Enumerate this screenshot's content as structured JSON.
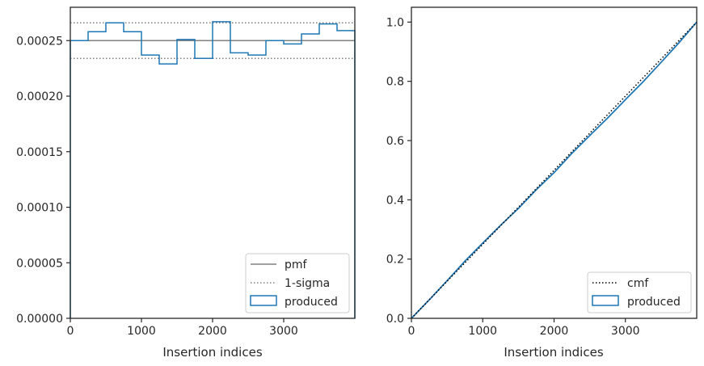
{
  "chart_data": [
    {
      "type": "histogram",
      "xlabel": "Insertion indices",
      "ylabel": "",
      "xlim": [
        0,
        4000
      ],
      "ylim": [
        0,
        0.00028
      ],
      "x_ticks": [
        0,
        1000,
        2000,
        3000
      ],
      "x_tick_labels": [
        "0",
        "1000",
        "2000",
        "3000"
      ],
      "y_ticks": [
        0,
        5e-05,
        0.0001,
        0.00015,
        0.0002,
        0.00025
      ],
      "y_tick_labels": [
        "0.00000",
        "0.00005",
        "0.00010",
        "0.00015",
        "0.00020",
        "0.00025"
      ],
      "bin_edges": [
        0,
        250,
        500,
        750,
        1000,
        1250,
        1500,
        1750,
        2000,
        2250,
        2500,
        2750,
        3000,
        3250,
        3500,
        3750,
        4000
      ],
      "series": [
        {
          "name": "pmf",
          "kind": "hline",
          "value": 0.00025,
          "color": "#808080",
          "style": "solid"
        },
        {
          "name": "1-sigma",
          "kind": "hlines",
          "values": [
            0.000266,
            0.000234
          ],
          "color": "#808080",
          "style": "dotted"
        },
        {
          "name": "produced",
          "kind": "step",
          "values": [
            0.00025,
            0.000258,
            0.000266,
            0.000258,
            0.000237,
            0.000229,
            0.000251,
            0.000234,
            0.000267,
            0.000239,
            0.000237,
            0.00025,
            0.000247,
            0.000256,
            0.000265,
            0.000259
          ],
          "color": "#1f77b4"
        }
      ],
      "legend": {
        "position": "lower-right",
        "entries": [
          "pmf",
          "1-sigma",
          "produced"
        ]
      },
      "grid": false
    },
    {
      "type": "line",
      "xlabel": "Insertion indices",
      "ylabel": "",
      "xlim": [
        0,
        4000
      ],
      "ylim": [
        0,
        1.05
      ],
      "x_ticks": [
        0,
        1000,
        2000,
        3000
      ],
      "x_tick_labels": [
        "0",
        "1000",
        "2000",
        "3000"
      ],
      "y_ticks": [
        0,
        0.2,
        0.4,
        0.6,
        0.8,
        1.0
      ],
      "y_tick_labels": [
        "0.0",
        "0.2",
        "0.4",
        "0.6",
        "0.8",
        "1.0"
      ],
      "series": [
        {
          "name": "cmf",
          "x": [
            0,
            4000
          ],
          "y": [
            0,
            1.0
          ],
          "color": "#000000",
          "style": "dotted"
        },
        {
          "name": "produced",
          "x": [
            0,
            250,
            500,
            750,
            1000,
            1250,
            1500,
            1750,
            2000,
            2250,
            2500,
            2750,
            3000,
            3250,
            3500,
            3750,
            4000
          ],
          "y": [
            0,
            0.0625,
            0.127,
            0.193,
            0.254,
            0.314,
            0.371,
            0.434,
            0.492,
            0.557,
            0.617,
            0.676,
            0.738,
            0.799,
            0.864,
            0.93,
            1.0
          ],
          "color": "#1f77b4",
          "style": "solid"
        }
      ],
      "legend": {
        "position": "lower-right",
        "entries": [
          "cmf",
          "produced"
        ]
      },
      "grid": false
    }
  ]
}
